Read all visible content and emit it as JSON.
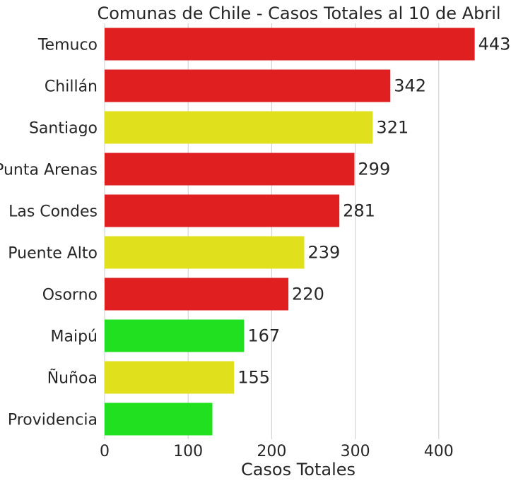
{
  "chart_data": {
    "type": "bar",
    "orientation": "horizontal",
    "title": "Comunas de Chile - Casos Totales al 10 de Abril",
    "xlabel": "Casos Totales",
    "ylabel": "",
    "xlim": [
      0,
      450
    ],
    "xticks": [
      0,
      100,
      200,
      300,
      400
    ],
    "grid": "vertical",
    "categories": [
      "Temuco",
      "Chillán",
      "Santiago",
      "Punta Arenas",
      "Las Condes",
      "Puente Alto",
      "Osorno",
      "Maipú",
      "Ñuñoa",
      "Providencia"
    ],
    "values": [
      443,
      342,
      321,
      299,
      281,
      239,
      220,
      167,
      155,
      129
    ],
    "data_labels": [
      "443",
      "342",
      "321",
      "299",
      "281",
      "239",
      "220",
      "167",
      "155",
      ""
    ],
    "colors": [
      "#e02020",
      "#e02020",
      "#e0e01c",
      "#e02020",
      "#e02020",
      "#e0e01c",
      "#e02020",
      "#20e020",
      "#e0e01c",
      "#20e020"
    ]
  }
}
